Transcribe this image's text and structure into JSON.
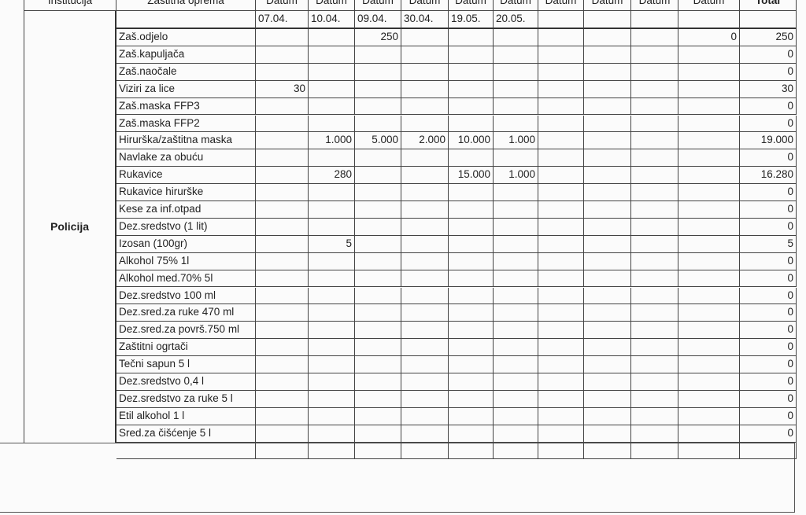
{
  "header": {
    "institution": "Institucija",
    "equipment": "Zaštitna oprema",
    "date_label": "Datum",
    "total": "Total"
  },
  "dates": [
    "07.04.",
    "10.04.",
    "09.04.",
    "30.04.",
    "19.05.",
    "20.05.",
    "",
    "",
    "",
    ""
  ],
  "institution_name": "Policija",
  "rows": [
    {
      "item": "Zaš.odjelo",
      "values": [
        "",
        "",
        "250",
        "",
        "",
        "",
        "",
        "",
        "",
        "0"
      ],
      "total": "250"
    },
    {
      "item": "Zaš.kapuljača",
      "values": [
        "",
        "",
        "",
        "",
        "",
        "",
        "",
        "",
        "",
        ""
      ],
      "total": "0"
    },
    {
      "item": "Zaš.naočale",
      "values": [
        "",
        "",
        "",
        "",
        "",
        "",
        "",
        "",
        "",
        ""
      ],
      "total": "0"
    },
    {
      "item": "Viziri za lice",
      "values": [
        "30",
        "",
        "",
        "",
        "",
        "",
        "",
        "",
        "",
        ""
      ],
      "total": "30"
    },
    {
      "item": "Zaš.maska FFP3",
      "values": [
        "",
        "",
        "",
        "",
        "",
        "",
        "",
        "",
        "",
        ""
      ],
      "total": "0"
    },
    {
      "item": "Zaš.maska FFP2",
      "values": [
        "",
        "",
        "",
        "",
        "",
        "",
        "",
        "",
        "",
        ""
      ],
      "total": "0"
    },
    {
      "item": "Hirurška/zaštitna maska",
      "values": [
        "",
        "1.000",
        "5.000",
        "2.000",
        "10.000",
        "1.000",
        "",
        "",
        "",
        ""
      ],
      "total": "19.000"
    },
    {
      "item": "Navlake za obuću",
      "values": [
        "",
        "",
        "",
        "",
        "",
        "",
        "",
        "",
        "",
        ""
      ],
      "total": "0"
    },
    {
      "item": "Rukavice",
      "values": [
        "",
        "280",
        "",
        "",
        "15.000",
        "1.000",
        "",
        "",
        "",
        ""
      ],
      "total": "16.280"
    },
    {
      "item": "Rukavice hirurške",
      "values": [
        "",
        "",
        "",
        "",
        "",
        "",
        "",
        "",
        "",
        ""
      ],
      "total": "0"
    },
    {
      "item": "Kese za inf.otpad",
      "values": [
        "",
        "",
        "",
        "",
        "",
        "",
        "",
        "",
        "",
        ""
      ],
      "total": "0"
    },
    {
      "item": "Dez.sredstvo (1 lit)",
      "values": [
        "",
        "",
        "",
        "",
        "",
        "",
        "",
        "",
        "",
        ""
      ],
      "total": "0"
    },
    {
      "item": "Izosan (100gr)",
      "values": [
        "",
        "5",
        "",
        "",
        "",
        "",
        "",
        "",
        "",
        ""
      ],
      "total": "5"
    },
    {
      "item": "Alkohol 75% 1l",
      "values": [
        "",
        "",
        "",
        "",
        "",
        "",
        "",
        "",
        "",
        ""
      ],
      "total": "0"
    },
    {
      "item": "Alkohol med.70%  5l",
      "values": [
        "",
        "",
        "",
        "",
        "",
        "",
        "",
        "",
        "",
        ""
      ],
      "total": "0"
    },
    {
      "item": "Dez.sredstvo 100 ml",
      "values": [
        "",
        "",
        "",
        "",
        "",
        "",
        "",
        "",
        "",
        ""
      ],
      "total": "0"
    },
    {
      "item": "Dez.sred.za ruke 470 ml",
      "values": [
        "",
        "",
        "",
        "",
        "",
        "",
        "",
        "",
        "",
        ""
      ],
      "total": "0"
    },
    {
      "item": "Dez.sred.za površ.750 ml",
      "values": [
        "",
        "",
        "",
        "",
        "",
        "",
        "",
        "",
        "",
        ""
      ],
      "total": "0"
    },
    {
      "item": "Zaštitni ogrtači",
      "values": [
        "",
        "",
        "",
        "",
        "",
        "",
        "",
        "",
        "",
        ""
      ],
      "total": "0"
    },
    {
      "item": "Tečni sapun 5 l",
      "values": [
        "",
        "",
        "",
        "",
        "",
        "",
        "",
        "",
        "",
        ""
      ],
      "total": "0"
    },
    {
      "item": "Dez.sredstvo 0,4 l",
      "values": [
        "",
        "",
        "",
        "",
        "",
        "",
        "",
        "",
        "",
        ""
      ],
      "total": "0"
    },
    {
      "item": "Dez.sredstvo za ruke 5 l",
      "values": [
        "",
        "",
        "",
        "",
        "",
        "",
        "",
        "",
        "",
        ""
      ],
      "total": "0"
    },
    {
      "item": "Etil alkohol 1 l",
      "values": [
        "",
        "",
        "",
        "",
        "",
        "",
        "",
        "",
        "",
        ""
      ],
      "total": "0"
    },
    {
      "item": "Sred.za čišćenje 5 l",
      "values": [
        "",
        "",
        "",
        "",
        "",
        "",
        "",
        "",
        "",
        ""
      ],
      "total": "0"
    },
    {
      "item": "",
      "values": [
        "",
        "",
        "",
        "",
        "",
        "",
        "",
        "",
        "",
        ""
      ],
      "total": ""
    }
  ]
}
